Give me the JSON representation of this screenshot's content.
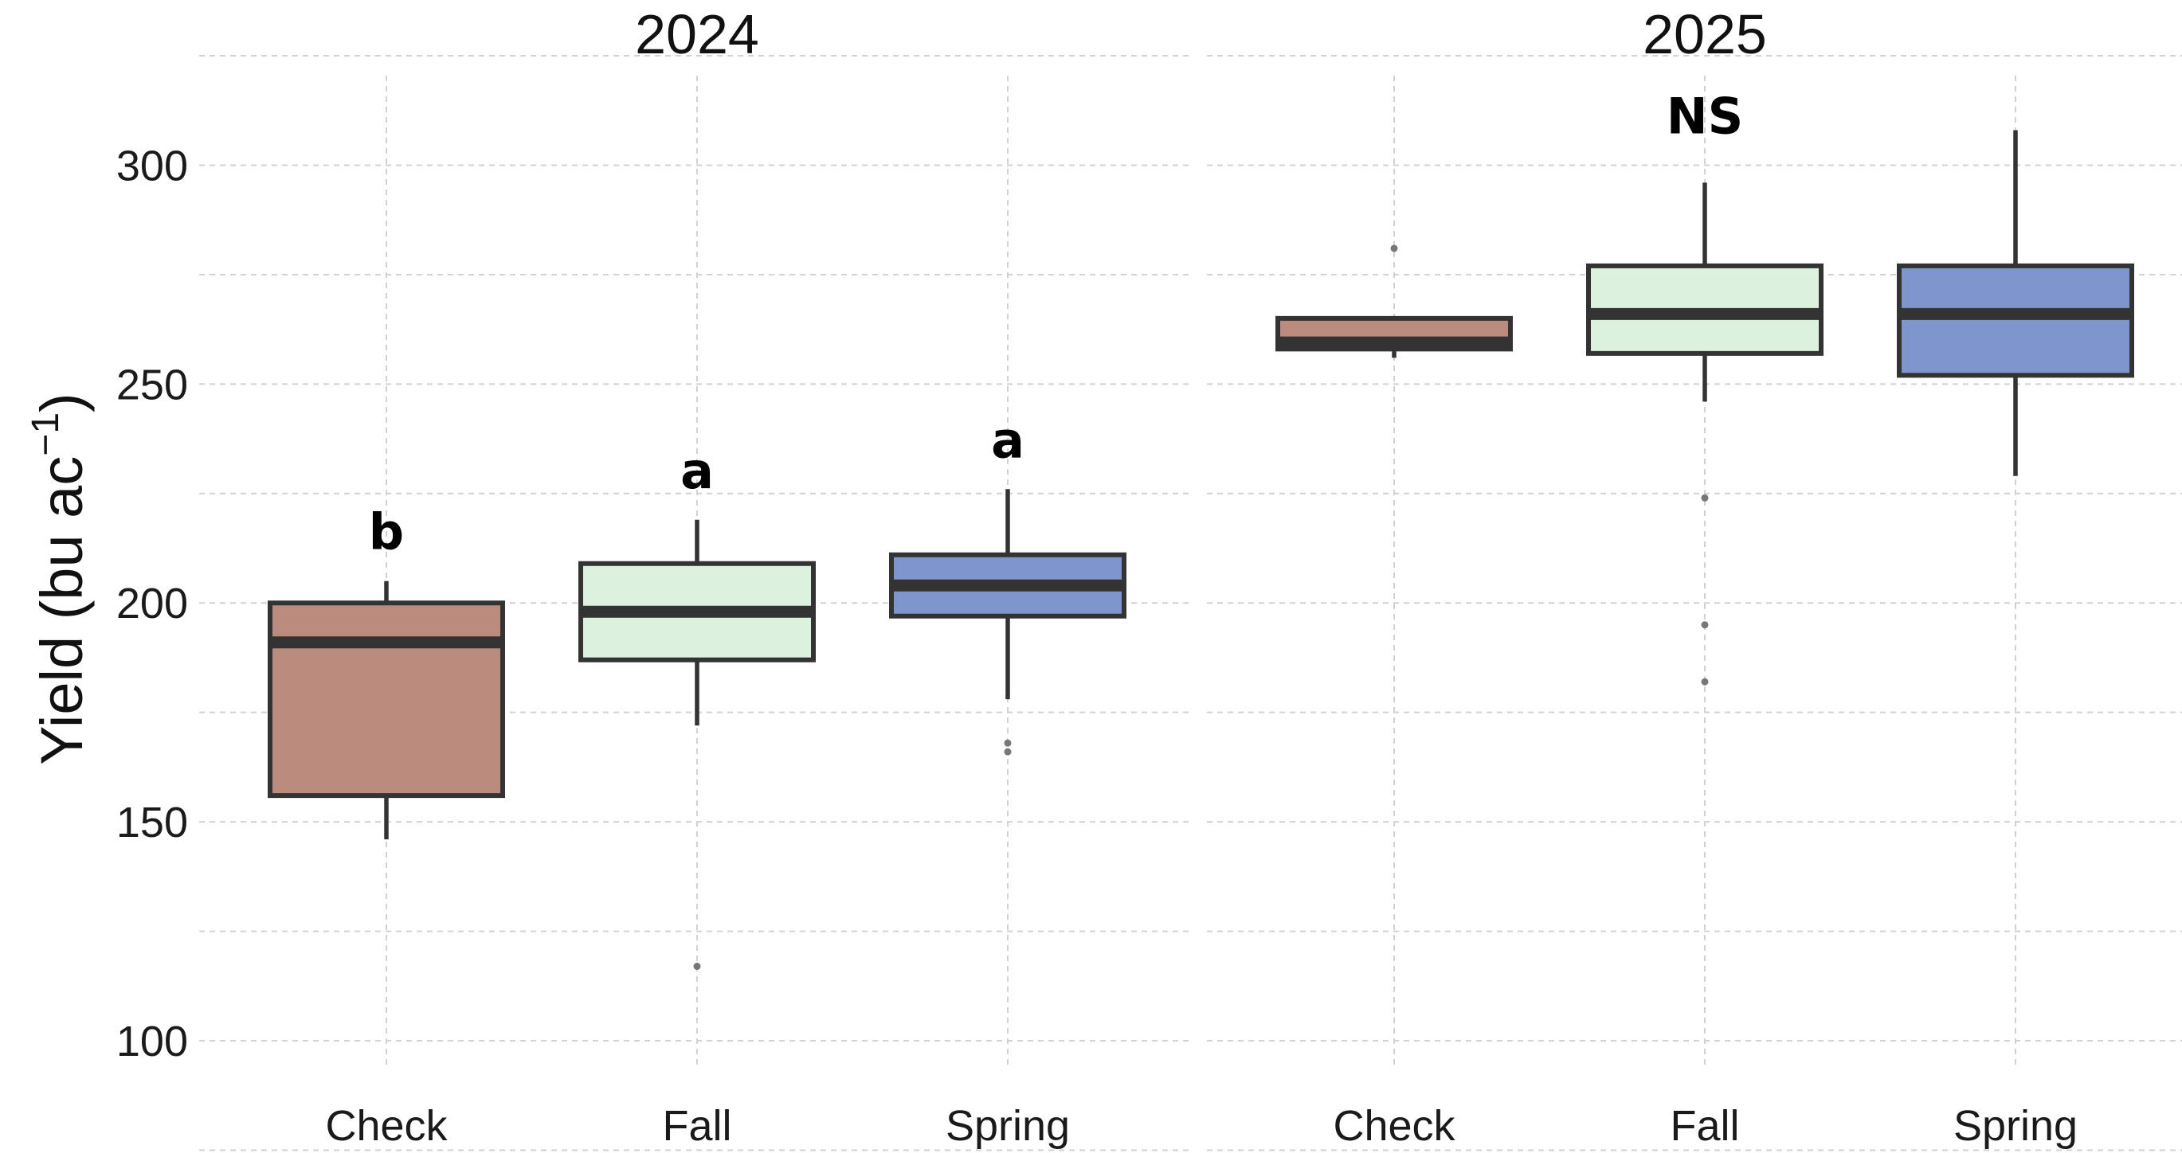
{
  "chart_data": {
    "type": "boxplot",
    "ylabel": "Yield (bu ac",
    "ylabel_sup": "−1",
    "ylabel_close": ")",
    "ylim": [
      94,
      325
    ],
    "y_ticks": [
      100,
      150,
      200,
      250,
      300
    ],
    "y_tick_labels": [
      "100",
      "150",
      "200",
      "250",
      "300"
    ],
    "grid": true,
    "colors": {
      "Check": "#bb8b7e",
      "Fall": "#dcf2de",
      "Spring": "#7e96cc",
      "box_stroke": "#333333",
      "grid": "#d2d2d2"
    },
    "panels": [
      {
        "title": "2024",
        "categories": [
          "Check",
          "Fall",
          "Spring"
        ],
        "boxes": [
          {
            "category": "Check",
            "whisker_low": 146,
            "q1": 156,
            "median": 191,
            "q3": 200,
            "whisker_high": 205,
            "outliers": [],
            "sig": "b"
          },
          {
            "category": "Fall",
            "whisker_low": 172,
            "q1": 187,
            "median": 198,
            "q3": 209,
            "whisker_high": 219,
            "outliers": [
              117
            ],
            "sig": "a"
          },
          {
            "category": "Spring",
            "whisker_low": 178,
            "q1": 197,
            "median": 204,
            "q3": 211,
            "whisker_high": 226,
            "outliers": [
              166,
              168
            ],
            "sig": "a"
          }
        ]
      },
      {
        "title": "2025",
        "categories": [
          "Check",
          "Fall",
          "Spring"
        ],
        "annotation": "NS",
        "boxes": [
          {
            "category": "Check",
            "whisker_low": 256,
            "q1": 258,
            "median": 259.5,
            "q3": 265,
            "whisker_high": 265.5,
            "outliers": [
              281
            ],
            "sig": ""
          },
          {
            "category": "Fall",
            "whisker_low": 246,
            "q1": 257,
            "median": 266,
            "q3": 277,
            "whisker_high": 296,
            "outliers": [
              182,
              195,
              224
            ],
            "sig": ""
          },
          {
            "category": "Spring",
            "whisker_low": 229,
            "q1": 252,
            "median": 266,
            "q3": 277,
            "whisker_high": 308,
            "outliers": [],
            "sig": ""
          }
        ]
      }
    ]
  }
}
